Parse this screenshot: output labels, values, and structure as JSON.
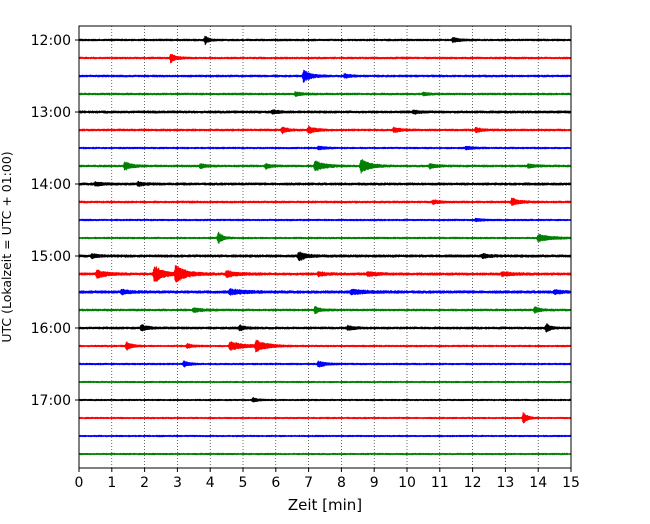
{
  "chart_data": {
    "type": "line",
    "title": "",
    "xlabel": "Zeit  [min]",
    "ylabel": "UTC (Lokalzeit = UTC + 01:00)",
    "xlim": [
      0,
      15
    ],
    "x_ticks": [
      0,
      1,
      2,
      3,
      4,
      5,
      6,
      7,
      8,
      9,
      10,
      11,
      12,
      13,
      14,
      15
    ],
    "x_tick_labels": [
      "0",
      "1",
      "2",
      "3",
      "4",
      "5",
      "6",
      "7",
      "8",
      "9",
      "10",
      "11",
      "12",
      "13",
      "14",
      "15"
    ],
    "y_tick_labels": [
      "12:00",
      "13:00",
      "14:00",
      "15:00",
      "16:00",
      "17:00"
    ],
    "y_tick_rows": [
      0,
      4,
      8,
      12,
      16,
      20
    ],
    "row_interval_min": 15,
    "grid": "vertical dotted",
    "legend": "none",
    "color_cycle": [
      "#000000",
      "#ff0000",
      "#0000ff",
      "#008000"
    ],
    "rows": [
      {
        "time": "12:00",
        "color": "#000000",
        "noise": 0.55,
        "events": [
          {
            "t": 3.85,
            "amp": 4.5,
            "dur": 0.1
          },
          {
            "t": 11.4,
            "amp": 2.2,
            "dur": 0.2
          }
        ]
      },
      {
        "time": "12:15",
        "color": "#ff0000",
        "noise": 0.55,
        "events": [
          {
            "t": 2.8,
            "amp": 4.5,
            "dur": 0.15
          }
        ]
      },
      {
        "time": "12:30",
        "color": "#0000ff",
        "noise": 0.6,
        "events": [
          {
            "t": 6.85,
            "amp": 6,
            "dur": 0.2
          },
          {
            "t": 8.1,
            "amp": 1.8,
            "dur": 0.2
          }
        ]
      },
      {
        "time": "12:45",
        "color": "#008000",
        "noise": 0.55,
        "events": [
          {
            "t": 6.6,
            "amp": 2,
            "dur": 0.2
          },
          {
            "t": 10.5,
            "amp": 1.6,
            "dur": 0.2
          }
        ]
      },
      {
        "time": "13:00",
        "color": "#000000",
        "noise": 0.7,
        "events": [
          {
            "t": 5.9,
            "amp": 1.8,
            "dur": 0.2
          },
          {
            "t": 10.2,
            "amp": 1.5,
            "dur": 0.2
          }
        ]
      },
      {
        "time": "13:15",
        "color": "#ff0000",
        "noise": 0.6,
        "events": [
          {
            "t": 6.2,
            "amp": 3,
            "dur": 0.15
          },
          {
            "t": 7.0,
            "amp": 3.5,
            "dur": 0.2
          },
          {
            "t": 9.6,
            "amp": 2.5,
            "dur": 0.2
          },
          {
            "t": 12.1,
            "amp": 2.5,
            "dur": 0.15
          }
        ]
      },
      {
        "time": "13:30",
        "color": "#0000ff",
        "noise": 0.5,
        "events": [
          {
            "t": 7.3,
            "amp": 1.6,
            "dur": 0.2
          },
          {
            "t": 11.8,
            "amp": 1.5,
            "dur": 0.2
          }
        ]
      },
      {
        "time": "13:45",
        "color": "#008000",
        "noise": 0.6,
        "events": [
          {
            "t": 1.4,
            "amp": 4,
            "dur": 0.2
          },
          {
            "t": 3.7,
            "amp": 2.5,
            "dur": 0.15
          },
          {
            "t": 5.7,
            "amp": 2.5,
            "dur": 0.15
          },
          {
            "t": 7.2,
            "amp": 5.5,
            "dur": 0.25
          },
          {
            "t": 8.6,
            "amp": 7,
            "dur": 0.25
          },
          {
            "t": 10.7,
            "amp": 2.2,
            "dur": 0.2
          },
          {
            "t": 13.7,
            "amp": 1.8,
            "dur": 0.2
          }
        ]
      },
      {
        "time": "14:00",
        "color": "#000000",
        "noise": 0.7,
        "events": [
          {
            "t": 0.5,
            "amp": 1.8,
            "dur": 0.2
          },
          {
            "t": 1.8,
            "amp": 1.8,
            "dur": 0.2
          }
        ]
      },
      {
        "time": "14:15",
        "color": "#ff0000",
        "noise": 0.6,
        "events": [
          {
            "t": 10.8,
            "amp": 1.8,
            "dur": 0.2
          },
          {
            "t": 13.2,
            "amp": 4,
            "dur": 0.2
          }
        ]
      },
      {
        "time": "14:30",
        "color": "#0000ff",
        "noise": 0.5,
        "events": [
          {
            "t": 12.1,
            "amp": 1.4,
            "dur": 0.2
          }
        ]
      },
      {
        "time": "14:45",
        "color": "#008000",
        "noise": 0.5,
        "events": [
          {
            "t": 4.25,
            "amp": 6,
            "dur": 0.12
          },
          {
            "t": 14.0,
            "amp": 3.5,
            "dur": 0.35
          }
        ]
      },
      {
        "time": "15:00",
        "color": "#000000",
        "noise": 0.75,
        "events": [
          {
            "t": 0.4,
            "amp": 2.2,
            "dur": 0.15
          },
          {
            "t": 6.7,
            "amp": 4.5,
            "dur": 0.2
          },
          {
            "t": 12.3,
            "amp": 2,
            "dur": 0.2
          }
        ]
      },
      {
        "time": "15:15",
        "color": "#ff0000",
        "noise": 0.75,
        "events": [
          {
            "t": 0.55,
            "amp": 4,
            "dur": 0.25
          },
          {
            "t": 2.3,
            "amp": 9,
            "dur": 0.25
          },
          {
            "t": 2.95,
            "amp": 8.5,
            "dur": 0.3
          },
          {
            "t": 4.5,
            "amp": 3,
            "dur": 0.3
          },
          {
            "t": 7.3,
            "amp": 2,
            "dur": 0.2
          },
          {
            "t": 8.8,
            "amp": 2,
            "dur": 0.3
          },
          {
            "t": 12.9,
            "amp": 2,
            "dur": 0.3
          }
        ]
      },
      {
        "time": "15:30",
        "color": "#0000ff",
        "noise": 0.8,
        "events": [
          {
            "t": 1.3,
            "amp": 2.5,
            "dur": 0.2
          },
          {
            "t": 4.6,
            "amp": 2.5,
            "dur": 0.4
          },
          {
            "t": 8.3,
            "amp": 2.2,
            "dur": 0.4
          },
          {
            "t": 14.5,
            "amp": 2,
            "dur": 0.2
          }
        ]
      },
      {
        "time": "15:45",
        "color": "#008000",
        "noise": 0.6,
        "events": [
          {
            "t": 3.5,
            "amp": 2.2,
            "dur": 0.2
          },
          {
            "t": 7.2,
            "amp": 3.5,
            "dur": 0.15
          },
          {
            "t": 13.9,
            "amp": 3,
            "dur": 0.15
          }
        ]
      },
      {
        "time": "16:00",
        "color": "#000000",
        "noise": 0.65,
        "events": [
          {
            "t": 1.9,
            "amp": 2.8,
            "dur": 0.2
          },
          {
            "t": 4.9,
            "amp": 2.8,
            "dur": 0.15
          },
          {
            "t": 8.2,
            "amp": 2,
            "dur": 0.2
          },
          {
            "t": 14.25,
            "amp": 4,
            "dur": 0.12
          }
        ]
      },
      {
        "time": "16:15",
        "color": "#ff0000",
        "noise": 0.5,
        "events": [
          {
            "t": 1.45,
            "amp": 4,
            "dur": 0.15
          },
          {
            "t": 3.3,
            "amp": 2.2,
            "dur": 0.15
          },
          {
            "t": 4.6,
            "amp": 4.5,
            "dur": 0.4
          },
          {
            "t": 5.4,
            "amp": 5.5,
            "dur": 0.3
          }
        ]
      },
      {
        "time": "16:30",
        "color": "#0000ff",
        "noise": 0.5,
        "events": [
          {
            "t": 3.2,
            "amp": 3,
            "dur": 0.15
          },
          {
            "t": 7.3,
            "amp": 3,
            "dur": 0.2
          }
        ]
      },
      {
        "time": "16:45",
        "color": "#008000",
        "noise": 0.45,
        "events": []
      },
      {
        "time": "17:00",
        "color": "#000000",
        "noise": 0.45,
        "events": [
          {
            "t": 5.3,
            "amp": 2,
            "dur": 0.15
          }
        ]
      },
      {
        "time": "17:15",
        "color": "#ff0000",
        "noise": 0.45,
        "events": [
          {
            "t": 13.55,
            "amp": 5.5,
            "dur": 0.12
          }
        ]
      },
      {
        "time": "17:30",
        "color": "#0000ff",
        "noise": 0.45,
        "events": []
      },
      {
        "time": "17:45",
        "color": "#008000",
        "noise": 0.45,
        "events": []
      }
    ]
  }
}
